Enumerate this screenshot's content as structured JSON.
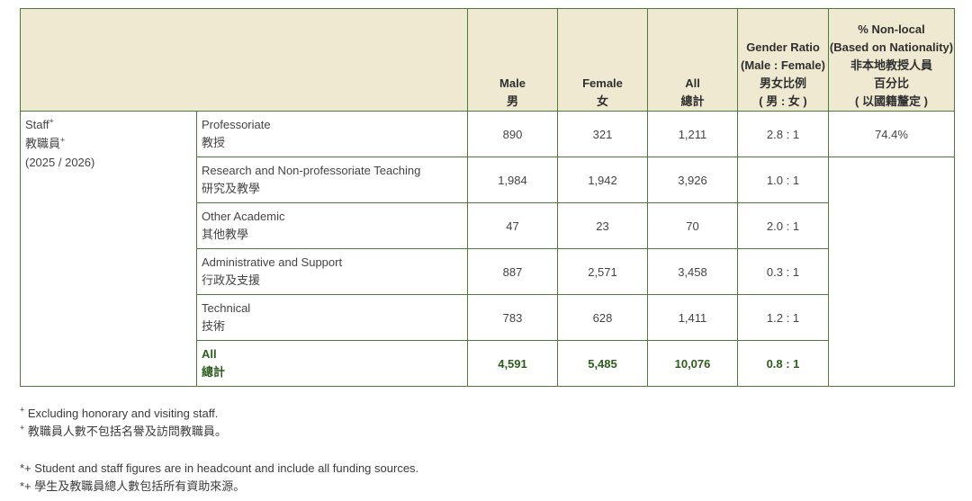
{
  "header": {
    "male_en": "Male",
    "male_zh": "男",
    "female_en": "Female",
    "female_zh": "女",
    "all_en": "All",
    "all_zh": "總計",
    "ratio_en_1": "Gender Ratio",
    "ratio_en_2": "(Male : Female)",
    "ratio_zh_1": "男女比例",
    "ratio_zh_2": "( 男 : 女 )",
    "nonlocal_en_1": "% Non-local",
    "nonlocal_en_2": "(Based on Nationality)",
    "nonlocal_zh_1": "非本地教授人員",
    "nonlocal_zh_2": "百分比",
    "nonlocal_zh_3": "( 以國籍釐定 )"
  },
  "staff": {
    "label_en": "Staff",
    "label_zh": "教職員",
    "sup": "+",
    "year": "(2025 / 2026)"
  },
  "rows": [
    {
      "en": "Professoriate",
      "zh": "教授",
      "male": "890",
      "female": "321",
      "all": "1,211",
      "ratio": "2.8 : 1",
      "nonlocal": "74.4%"
    },
    {
      "en": "Research and Non-professoriate Teaching",
      "zh": "研究及教學",
      "male": "1,984",
      "female": "1,942",
      "all": "3,926",
      "ratio": "1.0 : 1"
    },
    {
      "en": "Other Academic",
      "zh": "其他教學",
      "male": "47",
      "female": "23",
      "all": "70",
      "ratio": "2.0 : 1"
    },
    {
      "en": "Administrative and Support",
      "zh": "行政及支援",
      "male": "887",
      "female": "2,571",
      "all": "3,458",
      "ratio": "0.3 : 1"
    },
    {
      "en": "Technical",
      "zh": "技術",
      "male": "783",
      "female": "628",
      "all": "1,411",
      "ratio": "1.2 : 1"
    }
  ],
  "total": {
    "en": "All",
    "zh": "總計",
    "male": "4,591",
    "female": "5,485",
    "all": "10,076",
    "ratio": "0.8 : 1"
  },
  "notes": {
    "n1_sup": "+",
    "n1_en": " Excluding honorary and visiting staff.",
    "n1_zh": " 教職員人數不包括名譽及訪問教職員。",
    "n2_sup": "*+",
    "n2_en": " Student and staff figures are in headcount and include all funding sources.",
    "n2_zh": " 學生及教職員總人數包括所有資助來源。"
  },
  "colors": {
    "border": "#4e7a3c",
    "header_bg": "#efe9d2",
    "total_text": "#2e5e1e"
  }
}
